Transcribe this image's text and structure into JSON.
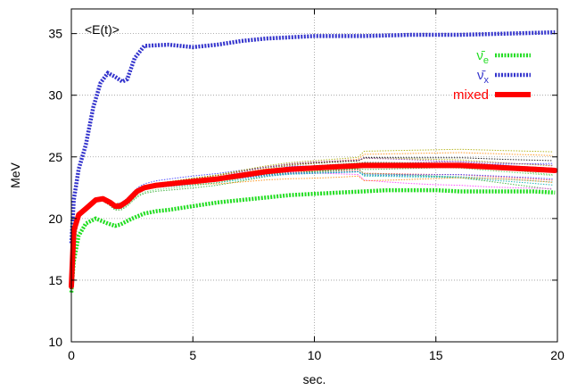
{
  "chart_data": {
    "type": "line",
    "title": "<E(t)>",
    "xlabel": "sec.",
    "ylabel": "MeV",
    "xlim": [
      0,
      20
    ],
    "ylim": [
      10,
      37
    ],
    "xticks": [
      0,
      5,
      10,
      15,
      20
    ],
    "yticks": [
      10,
      15,
      20,
      25,
      30,
      35
    ],
    "xtick_labels": [
      "0",
      "5",
      "10",
      "15",
      "20"
    ],
    "ytick_labels": [
      "10",
      "15",
      "20",
      "25",
      "30",
      "35"
    ],
    "grid": true,
    "legend_position": "top-right",
    "series": [
      {
        "name": "ν̄e",
        "label_main": "ν̄",
        "label_sub": "e",
        "color": "#22dd22",
        "style": "dotted-thick",
        "x": [
          0,
          0.1,
          0.3,
          0.6,
          1.0,
          1.5,
          1.8,
          2.0,
          2.5,
          3.0,
          3.5,
          4.0,
          5.0,
          6.0,
          7.0,
          8.0,
          9.0,
          10.0,
          11.0,
          12.0,
          13.0,
          14.0,
          15.0,
          16.0,
          17.0,
          18.0,
          19.0,
          19.9
        ],
        "y": [
          14.0,
          16.5,
          18.6,
          19.6,
          20.0,
          19.6,
          19.4,
          19.5,
          20.0,
          20.4,
          20.6,
          20.7,
          21.0,
          21.3,
          21.5,
          21.7,
          21.9,
          22.0,
          22.1,
          22.2,
          22.3,
          22.3,
          22.3,
          22.2,
          22.2,
          22.2,
          22.2,
          22.1
        ]
      },
      {
        "name": "ν̄x",
        "label_main": "ν̄",
        "label_sub": "x",
        "color": "#3333cc",
        "style": "dotted-thick",
        "x": [
          0,
          0.1,
          0.3,
          0.6,
          0.9,
          1.2,
          1.5,
          1.8,
          2.1,
          2.3,
          2.6,
          3.0,
          4.0,
          5.0,
          6.0,
          7.0,
          8.0,
          9.0,
          10.0,
          12.0,
          14.0,
          16.0,
          18.0,
          19.9
        ],
        "y": [
          18.0,
          21.5,
          24.0,
          26.0,
          29.0,
          31.0,
          31.8,
          31.5,
          31.1,
          31.3,
          33.0,
          34.0,
          34.1,
          33.9,
          34.1,
          34.4,
          34.6,
          34.7,
          34.8,
          34.8,
          34.9,
          34.9,
          35.0,
          35.1
        ]
      },
      {
        "name": "mixed",
        "label_main": "mixed",
        "label_sub": "",
        "color": "#ff0000",
        "style": "solid-thick",
        "x": [
          0,
          0.1,
          0.3,
          0.6,
          1.0,
          1.3,
          1.6,
          1.8,
          2.0,
          2.3,
          2.7,
          3.0,
          3.5,
          4.0,
          5.0,
          6.0,
          7.0,
          8.0,
          9.0,
          10.0,
          11.0,
          12.0,
          13.0,
          14.0,
          15.0,
          16.0,
          17.0,
          18.0,
          19.0,
          19.9
        ],
        "y": [
          14.5,
          19.0,
          20.3,
          20.8,
          21.5,
          21.6,
          21.3,
          21.0,
          21.0,
          21.4,
          22.2,
          22.5,
          22.7,
          22.8,
          23.0,
          23.2,
          23.5,
          23.8,
          24.0,
          24.1,
          24.2,
          24.3,
          24.3,
          24.3,
          24.3,
          24.3,
          24.2,
          24.1,
          24.0,
          23.9
        ]
      }
    ]
  },
  "background_curves": {
    "colors": [
      "#ff3333",
      "#33aa33",
      "#3333ff",
      "#ff33ff",
      "#00aaaa",
      "#aaaa00",
      "#000000",
      "#ff8800",
      "#8833aa",
      "#55cc55"
    ]
  }
}
